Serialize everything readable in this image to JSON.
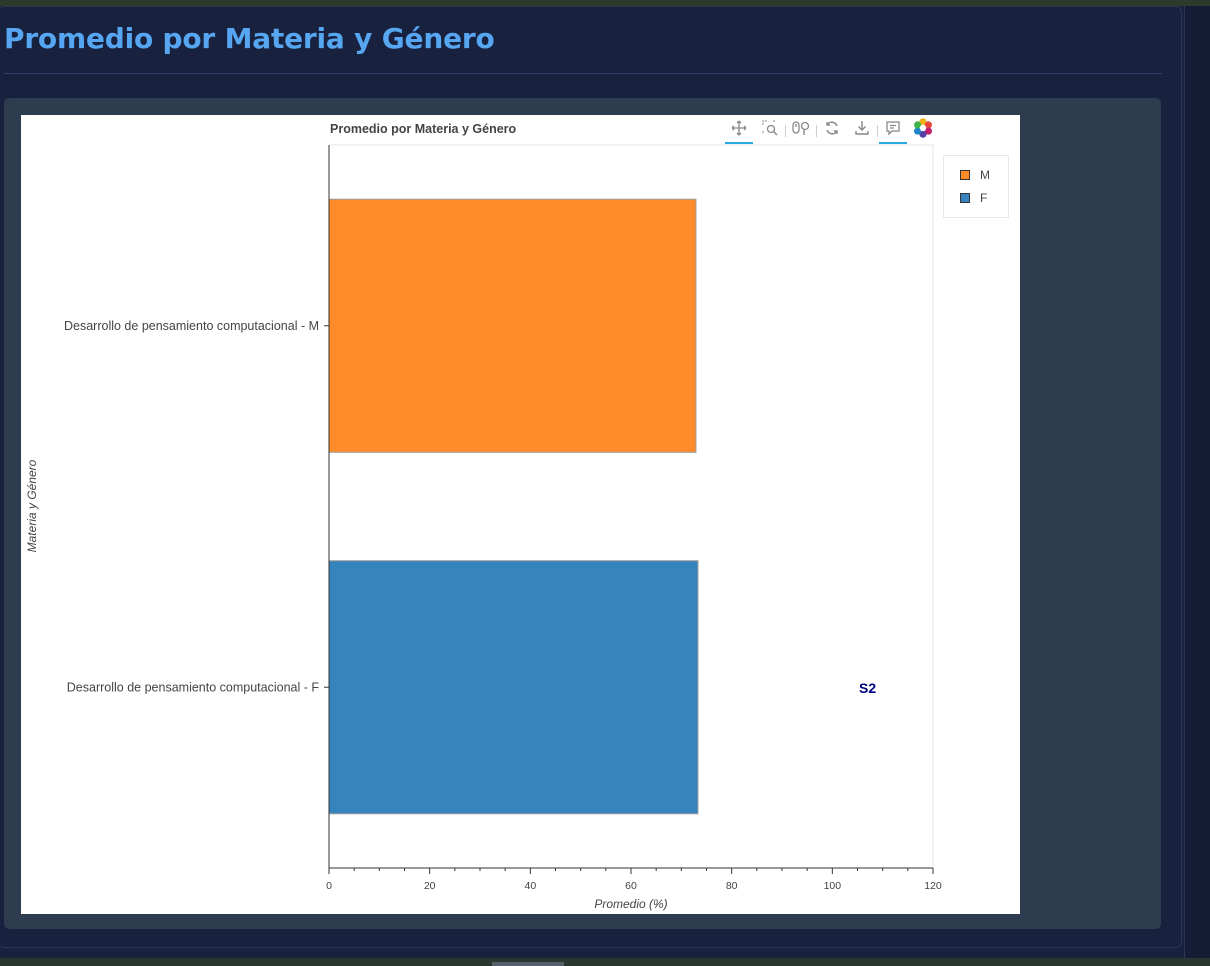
{
  "page": {
    "title": "Promedio por Materia y Género"
  },
  "toolbar": {
    "tools": [
      {
        "name": "pan-tool",
        "icon": "pan-icon",
        "active": true
      },
      {
        "name": "box-zoom-tool",
        "icon": "box-zoom-icon",
        "active": false
      },
      {
        "name": "wheel-zoom-tool",
        "icon": "wheel-zoom-icon",
        "active": false
      },
      {
        "name": "reset-tool",
        "icon": "reset-icon",
        "active": false
      },
      {
        "name": "save-tool",
        "icon": "save-icon",
        "active": false
      },
      {
        "name": "hover-tool",
        "icon": "hover-icon",
        "active": true
      },
      {
        "name": "bokeh-logo",
        "icon": "bokeh-logo-icon",
        "active": false
      }
    ]
  },
  "legend": {
    "items": [
      {
        "label": "M",
        "color": "#ff8c29"
      },
      {
        "label": "F",
        "color": "#3684bd"
      }
    ]
  },
  "annotation": {
    "text": "S2",
    "color": "#000080"
  },
  "chart_data": {
    "type": "bar",
    "orientation": "horizontal",
    "title": "Promedio por Materia y Género",
    "xlabel": "Promedio (%)",
    "ylabel": "Materia y Género",
    "xlim": [
      0,
      120
    ],
    "xticks": [
      0,
      20,
      40,
      60,
      80,
      100,
      120
    ],
    "categories": [
      "Desarrollo de pensamiento computacional - M",
      "Desarrollo de pensamiento computacional - F"
    ],
    "values": [
      72.9,
      73.3
    ],
    "colors": [
      "#ff8c29",
      "#3684bd"
    ],
    "grid": false,
    "legend_position": "right"
  }
}
